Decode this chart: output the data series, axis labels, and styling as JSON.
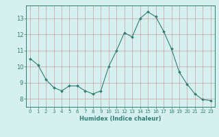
{
  "x": [
    0,
    1,
    2,
    3,
    4,
    5,
    6,
    7,
    8,
    9,
    10,
    11,
    12,
    13,
    14,
    15,
    16,
    17,
    18,
    19,
    20,
    21,
    22,
    23
  ],
  "y": [
    10.5,
    10.1,
    9.2,
    8.7,
    8.5,
    8.8,
    8.8,
    8.5,
    8.3,
    8.5,
    10.0,
    11.0,
    12.1,
    11.85,
    13.0,
    13.4,
    13.1,
    12.2,
    11.1,
    9.65,
    8.9,
    8.3,
    7.95,
    7.9
  ],
  "line_color": "#2e7d72",
  "marker": "D",
  "marker_size": 2.0,
  "bg_color": "#d6f0f0",
  "grid_color": "#c8a0a0",
  "axis_color": "#2e7d72",
  "xlabel": "Humidex (Indice chaleur)",
  "ylim": [
    7.5,
    13.8
  ],
  "xlim": [
    -0.5,
    23.5
  ],
  "yticks": [
    8,
    9,
    10,
    11,
    12,
    13
  ],
  "xticks": [
    0,
    1,
    2,
    3,
    4,
    5,
    6,
    7,
    8,
    9,
    10,
    11,
    12,
    13,
    14,
    15,
    16,
    17,
    18,
    19,
    20,
    21,
    22,
    23
  ]
}
